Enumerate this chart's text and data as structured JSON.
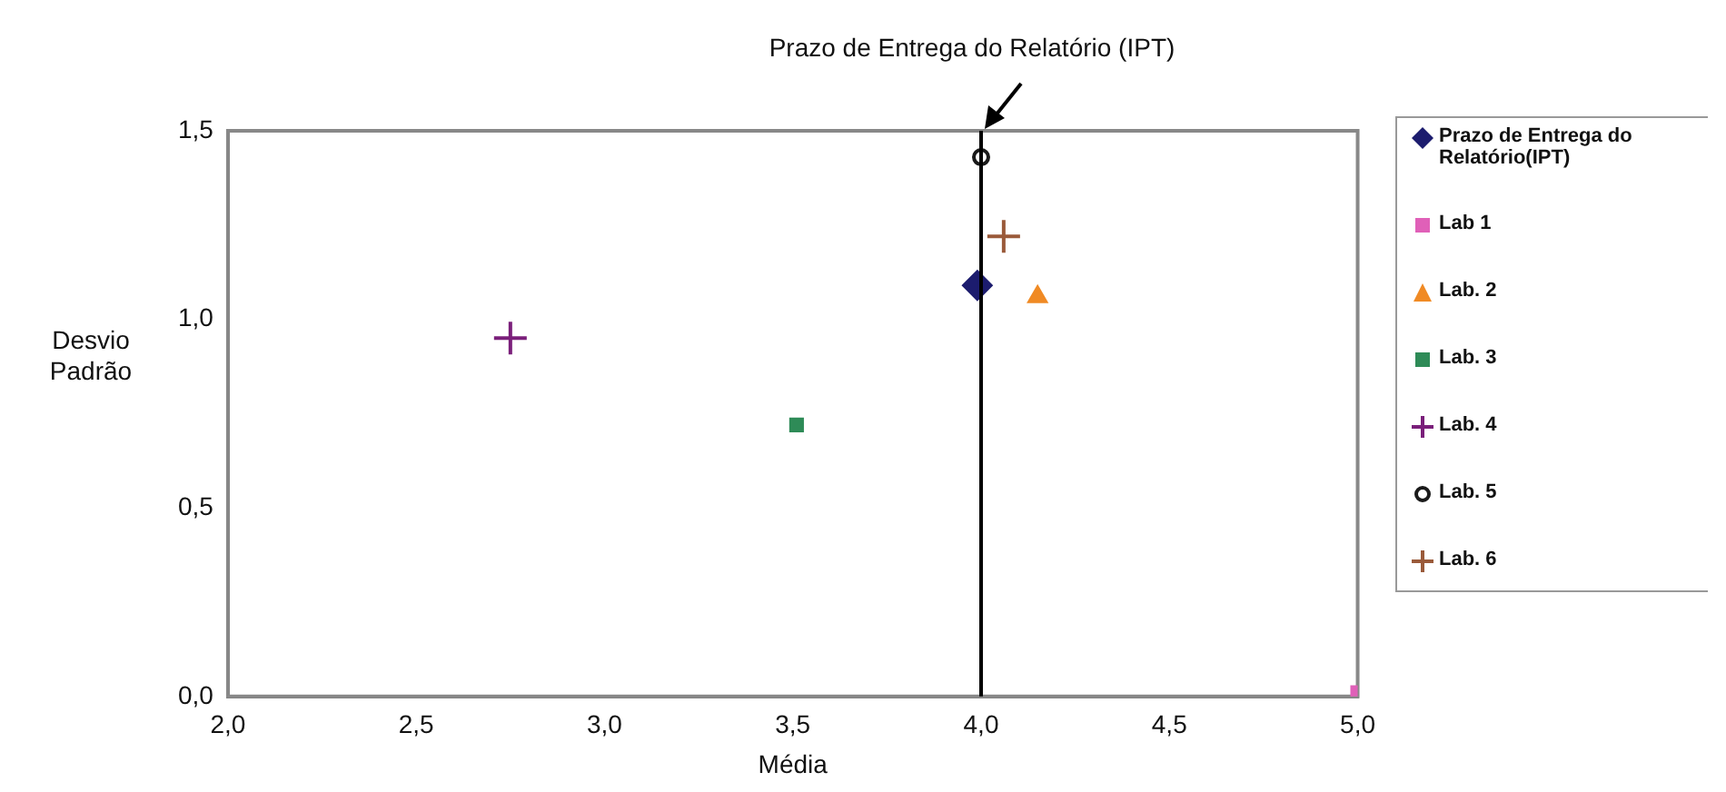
{
  "chart_data": {
    "type": "scatter",
    "xlabel": "Média",
    "ylabel": "Desvio Padrão",
    "xlim": [
      2,
      5
    ],
    "ylim": [
      0,
      1.5
    ],
    "xticks": [
      {
        "value": 2,
        "label": "2,0"
      },
      {
        "value": 2.5,
        "label": "2,5"
      },
      {
        "value": 3,
        "label": "3,0"
      },
      {
        "value": 3.5,
        "label": "3,5"
      },
      {
        "value": 4,
        "label": "4,0"
      },
      {
        "value": 4.5,
        "label": "4,5"
      },
      {
        "value": 5,
        "label": "5,0"
      }
    ],
    "yticks": [
      {
        "value": 0,
        "label": "0,0"
      },
      {
        "value": 0.5,
        "label": "0,5"
      },
      {
        "value": 1,
        "label": "1,0"
      },
      {
        "value": 1.5,
        "label": "1,5"
      }
    ],
    "grid": false,
    "legend": "right",
    "ref_lines": [
      {
        "axis": "x",
        "value": 4,
        "label": "Prazo de Entrega do Relatório (IPT)",
        "color": "#000000"
      }
    ],
    "series": [
      {
        "name": "Prazo de Entrega do Relatório(IPT)",
        "color": "#1c1c6e",
        "marker": "diamond",
        "x": [
          3.99
        ],
        "values": [
          1.09
        ]
      },
      {
        "name": "Lab 1",
        "color": "#e060b8",
        "marker": "square",
        "x": [
          5.0
        ],
        "values": [
          0.01
        ]
      },
      {
        "name": "Lab. 2",
        "color": "#f08a24",
        "marker": "triangle",
        "x": [
          4.15
        ],
        "values": [
          1.06
        ]
      },
      {
        "name": "Lab. 3",
        "color": "#2e8b57",
        "marker": "square",
        "x": [
          3.51
        ],
        "values": [
          0.72
        ]
      },
      {
        "name": "Lab. 4",
        "color": "#7a1f7a",
        "marker": "cross",
        "x": [
          2.75
        ],
        "values": [
          0.95
        ]
      },
      {
        "name": "Lab. 5",
        "color": "#1a1a1a",
        "marker": "circle",
        "x": [
          4.0
        ],
        "values": [
          1.43
        ]
      },
      {
        "name": "Lab. 6",
        "color": "#9a5a3a",
        "marker": "cross",
        "x": [
          4.06
        ],
        "values": [
          1.22
        ]
      }
    ]
  }
}
